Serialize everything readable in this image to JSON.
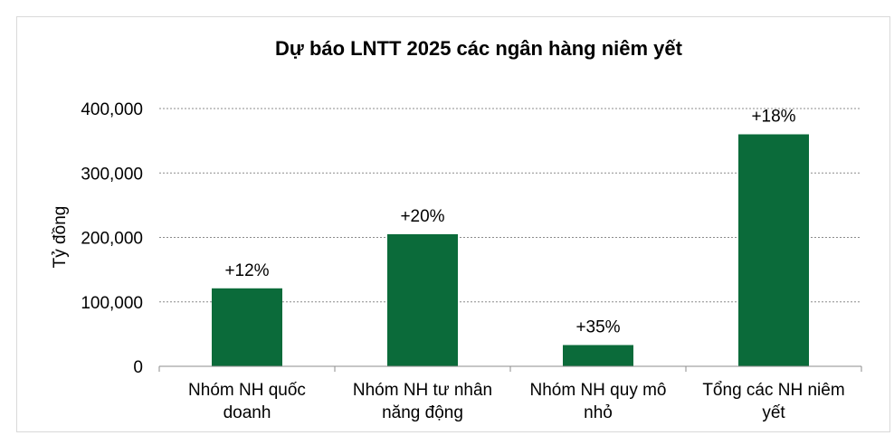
{
  "chart_data": {
    "type": "bar",
    "title": "Dự báo LNTT 2025 các ngân hàng niêm yết",
    "ylabel": "Tỷ đồng",
    "xlabel": "",
    "ylim": [
      0,
      400000
    ],
    "yticks": [
      0,
      100000,
      200000,
      300000,
      400000
    ],
    "ytick_labels": [
      "0",
      "100,000",
      "200,000",
      "300,000",
      "400,000"
    ],
    "grid": true,
    "legend": "none",
    "bar_color": "#0b6b3a",
    "categories": [
      [
        "Nhóm NH quốc",
        "doanh"
      ],
      [
        "Nhóm NH tư nhân",
        "năng động"
      ],
      [
        "Nhóm NH quy mô",
        "nhỏ"
      ],
      [
        "Tổng các NH niêm",
        "yết"
      ]
    ],
    "values": [
      121000,
      205000,
      33000,
      360000
    ],
    "data_labels": [
      "+12%",
      "+20%",
      "+35%",
      "+18%"
    ]
  }
}
